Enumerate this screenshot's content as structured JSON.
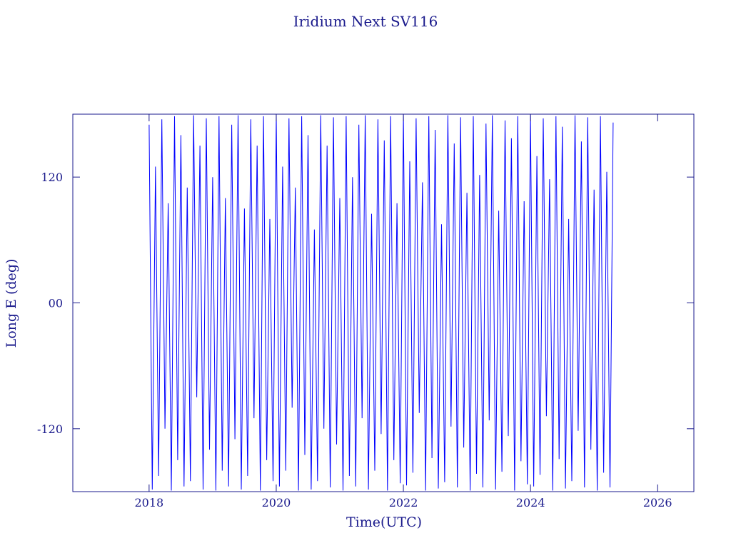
{
  "chart_data": {
    "type": "line",
    "title": "Iridium Next SV116",
    "x_label": "Time(UTC)",
    "y_label": "Long E (deg)",
    "xlim": [
      2016.8,
      2026.57
    ],
    "ylim": [
      -180,
      180
    ],
    "xticks": [
      2018,
      2020,
      2022,
      2024,
      2026
    ],
    "yticks": [
      -120,
      {
        "value": 0,
        "label": "00"
      },
      120
    ],
    "axis_color": "#1a1a8c",
    "series": [
      {
        "color": "#0000ff",
        "x": [
          2018,
          2018.05,
          2018.1,
          2018.15,
          2018.2,
          2018.25,
          2018.3,
          2018.35,
          2018.4,
          2018.45,
          2018.5,
          2018.55,
          2018.6,
          2018.65,
          2018.7,
          2018.75,
          2018.8,
          2018.85,
          2018.9,
          2018.95,
          2019,
          2019.05,
          2019.1,
          2019.15,
          2019.2,
          2019.25,
          2019.3,
          2019.35,
          2019.4,
          2019.45,
          2019.5,
          2019.55,
          2019.6,
          2019.65,
          2019.7,
          2019.75,
          2019.8,
          2019.85,
          2019.9,
          2019.95,
          2020,
          2020.05,
          2020.1,
          2020.15,
          2020.2,
          2020.25,
          2020.3,
          2020.35,
          2020.4,
          2020.45,
          2020.5,
          2020.55,
          2020.6,
          2020.65,
          2020.7,
          2020.75,
          2020.8,
          2020.85,
          2020.9,
          2020.95,
          2021,
          2021.05,
          2021.1,
          2021.15,
          2021.2,
          2021.25,
          2021.3,
          2021.35,
          2021.4,
          2021.45,
          2021.5,
          2021.55,
          2021.6,
          2021.65,
          2021.7,
          2021.75,
          2021.8,
          2021.85,
          2021.9,
          2021.95,
          2022,
          2022.05,
          2022.1,
          2022.15,
          2022.2,
          2022.25,
          2022.3,
          2022.35,
          2022.4,
          2022.45,
          2022.5,
          2022.55,
          2022.6,
          2022.65,
          2022.7,
          2022.75,
          2022.8,
          2022.85,
          2022.9,
          2022.95,
          2023,
          2023.05,
          2023.1,
          2023.15,
          2023.2,
          2023.25,
          2023.3,
          2023.35,
          2023.4,
          2023.45,
          2023.5,
          2023.55,
          2023.6,
          2023.65,
          2023.7,
          2023.75,
          2023.8,
          2023.85,
          2023.9,
          2023.95,
          2024,
          2024.05,
          2024.1,
          2024.15,
          2024.2,
          2024.25,
          2024.3,
          2024.35,
          2024.4,
          2024.45,
          2024.5,
          2024.55,
          2024.6,
          2024.65,
          2024.7,
          2024.75,
          2024.8,
          2024.85,
          2024.9,
          2024.95,
          2025,
          2025.05,
          2025.1,
          2025.15,
          2025.2,
          2025.25,
          2025.3
        ],
        "values": [
          170,
          -178,
          130,
          -165,
          175,
          -120,
          95,
          -179,
          178,
          -150,
          160,
          -175,
          110,
          -170,
          179,
          -90,
          150,
          -178,
          176,
          -140,
          120,
          -179,
          178,
          -160,
          100,
          -175,
          170,
          -130,
          179,
          -178,
          90,
          -165,
          175,
          -110,
          150,
          -179,
          178,
          -150,
          80,
          -170,
          179,
          -175,
          130,
          -160,
          176,
          -100,
          110,
          -179,
          178,
          -145,
          160,
          -178,
          70,
          -170,
          179,
          -120,
          150,
          -176,
          177,
          -135,
          100,
          -179,
          178,
          -165,
          120,
          -175,
          170,
          -110,
          179,
          -178,
          85,
          -160,
          175,
          -125,
          155,
          -179,
          178,
          -150,
          95,
          -172,
          179,
          -174,
          135,
          -162,
          176,
          -105,
          115,
          -179,
          178,
          -148,
          165,
          -177,
          75,
          -171,
          179,
          -118,
          152,
          -176,
          177,
          -138,
          105,
          -179,
          178,
          -163,
          122,
          -176,
          171,
          -112,
          179,
          -178,
          88,
          -161,
          174,
          -127,
          157,
          -179,
          178,
          -151,
          97,
          -173,
          179,
          -175,
          140,
          -164,
          176,
          -108,
          118,
          -179,
          178,
          -149,
          168,
          -177,
          80,
          -170,
          179,
          -122,
          154,
          -176,
          177,
          -140,
          108,
          -179,
          178,
          -162,
          125,
          -176,
          172
        ]
      }
    ]
  }
}
